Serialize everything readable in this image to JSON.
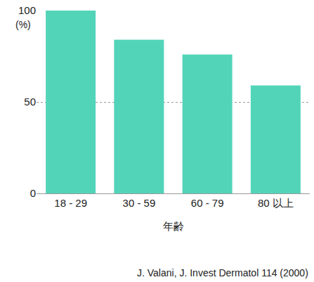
{
  "chart_data": {
    "type": "bar",
    "categories": [
      "18 - 29",
      "30 - 59",
      "60 - 79",
      "80 以上"
    ],
    "values": [
      100,
      84,
      76,
      59
    ],
    "color": "#52d4b9",
    "x_label": "年齢",
    "y_label": "(%)",
    "source": "J. Valani, J. Invest Dermatol 114 (2000)",
    "ylim": [
      0,
      100
    ],
    "yticks": [
      0,
      50,
      100
    ],
    "grid": true
  }
}
